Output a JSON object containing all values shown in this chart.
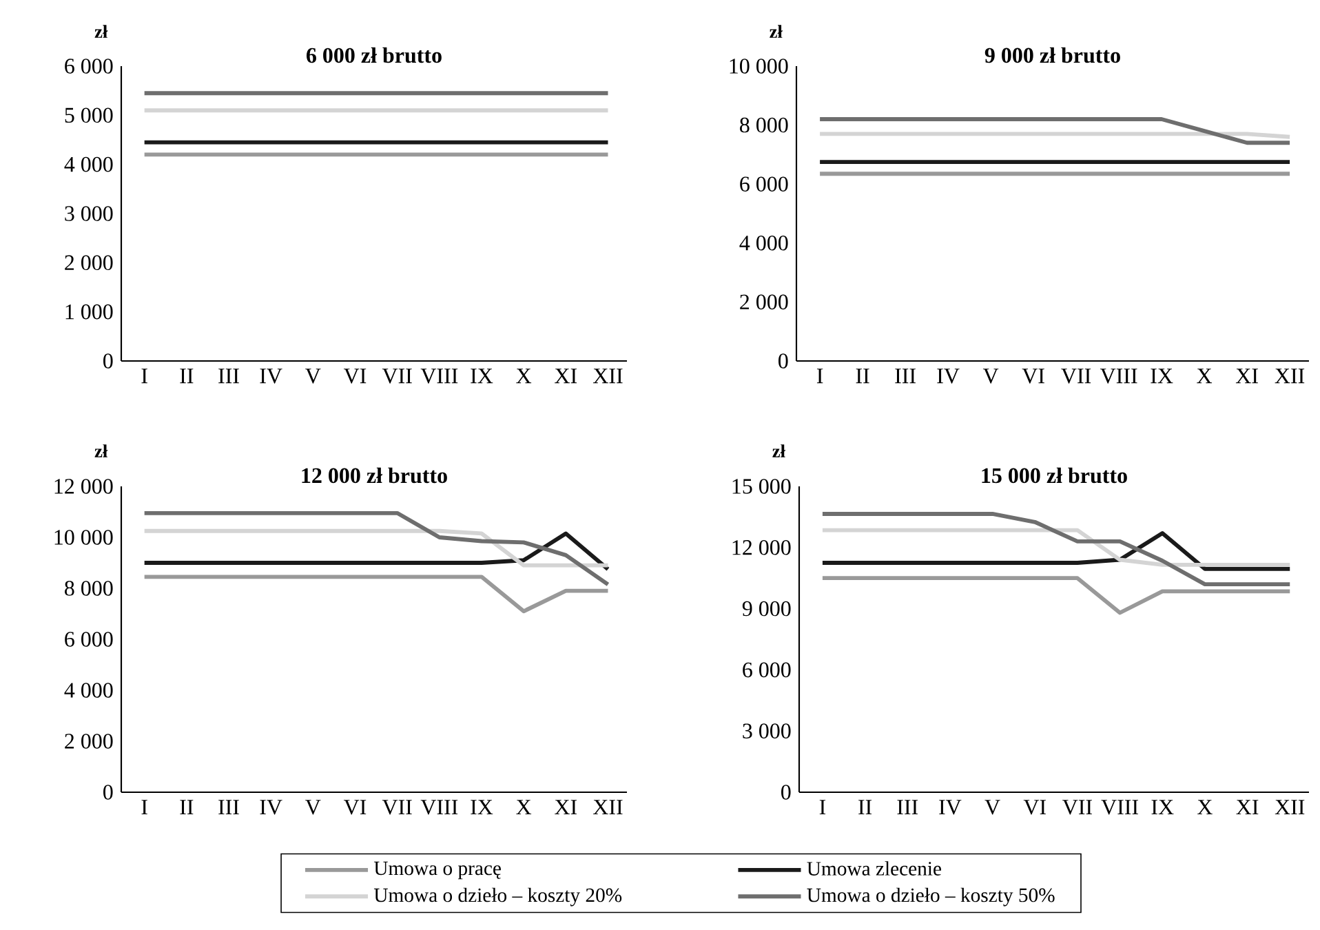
{
  "chart_data": [
    {
      "type": "line",
      "title": "6 000 zł brutto",
      "ylabel": "zł",
      "categories": [
        "I",
        "II",
        "III",
        "IV",
        "V",
        "VI",
        "VII",
        "VIII",
        "IX",
        "X",
        "XI",
        "XII"
      ],
      "ylim": [
        0,
        6000
      ],
      "yticks": [
        0,
        {
          "value": 1000,
          "label": "1 000"
        },
        {
          "value": 2000,
          "label": "2 000"
        },
        {
          "value": 3000,
          "label": "3 000"
        },
        {
          "value": 4000,
          "label": "4 000"
        },
        {
          "value": 5000,
          "label": "5 000"
        },
        {
          "value": 6000,
          "label": "6 000"
        }
      ],
      "series": [
        {
          "color": "#999999",
          "values": [
            4200,
            4200,
            4200,
            4200,
            4200,
            4200,
            4200,
            4200,
            4200,
            4200,
            4200,
            4200
          ]
        },
        {
          "color": "#1a1a1a",
          "values": [
            4450,
            4450,
            4450,
            4450,
            4450,
            4450,
            4450,
            4450,
            4450,
            4450,
            4450,
            4450
          ]
        },
        {
          "color": "#d4d4d4",
          "values": [
            5100,
            5100,
            5100,
            5100,
            5100,
            5100,
            5100,
            5100,
            5100,
            5100,
            5100,
            5100
          ]
        },
        {
          "color": "#6e6e6e",
          "values": [
            5450,
            5450,
            5450,
            5450,
            5450,
            5450,
            5450,
            5450,
            5450,
            5450,
            5450,
            5450
          ]
        }
      ]
    },
    {
      "type": "line",
      "title": "9 000 zł brutto",
      "ylabel": "zł",
      "categories": [
        "I",
        "II",
        "III",
        "IV",
        "V",
        "VI",
        "VII",
        "VIII",
        "IX",
        "X",
        "XI",
        "XII"
      ],
      "ylim": [
        0,
        10000
      ],
      "yticks": [
        0,
        {
          "value": 2000,
          "label": "2 000"
        },
        {
          "value": 4000,
          "label": "4 000"
        },
        {
          "value": 6000,
          "label": "6 000"
        },
        {
          "value": 8000,
          "label": "8 000"
        },
        {
          "value": 10000,
          "label": "10 000"
        }
      ],
      "series": [
        {
          "color": "#999999",
          "values": [
            6350,
            6350,
            6350,
            6350,
            6350,
            6350,
            6350,
            6350,
            6350,
            6350,
            6350,
            6350
          ]
        },
        {
          "color": "#1a1a1a",
          "values": [
            6750,
            6750,
            6750,
            6750,
            6750,
            6750,
            6750,
            6750,
            6750,
            6750,
            6750,
            6750
          ]
        },
        {
          "color": "#d4d4d4",
          "values": [
            7700,
            7700,
            7700,
            7700,
            7700,
            7700,
            7700,
            7700,
            7700,
            7700,
            7700,
            7600
          ]
        },
        {
          "color": "#6e6e6e",
          "values": [
            8200,
            8200,
            8200,
            8200,
            8200,
            8200,
            8200,
            8200,
            8200,
            7800,
            7400,
            7400
          ]
        }
      ]
    },
    {
      "type": "line",
      "title": "12 000 zł brutto",
      "ylabel": "zł",
      "legend": "bottom",
      "categories": [
        "I",
        "II",
        "III",
        "IV",
        "V",
        "VI",
        "VII",
        "VIII",
        "IX",
        "X",
        "XI",
        "XII"
      ],
      "ylim": [
        0,
        12000
      ],
      "yticks": [
        0,
        {
          "value": 2000,
          "label": "2 000"
        },
        {
          "value": 4000,
          "label": "4 000"
        },
        {
          "value": 6000,
          "label": "6 000"
        },
        {
          "value": 8000,
          "label": "8 000"
        },
        {
          "value": 10000,
          "label": "10 000"
        },
        {
          "value": 12000,
          "label": "12 000"
        }
      ],
      "series": [
        {
          "name": "Umowa o pracę",
          "color": "#999999",
          "values": [
            8450,
            8450,
            8450,
            8450,
            8450,
            8450,
            8450,
            8450,
            8450,
            7100,
            7900,
            7900
          ]
        },
        {
          "name": "Umowa zlecenie",
          "color": "#1a1a1a",
          "values": [
            9000,
            9000,
            9000,
            9000,
            9000,
            9000,
            9000,
            9000,
            9000,
            9100,
            10150,
            8750
          ]
        },
        {
          "name": "Umowa o dzieło – koszty 20%",
          "color": "#d4d4d4",
          "values": [
            10250,
            10250,
            10250,
            10250,
            10250,
            10250,
            10250,
            10250,
            10150,
            8900,
            8900,
            8900
          ]
        },
        {
          "name": "Umowa o dzieło – koszty 50%",
          "color": "#6e6e6e",
          "values": [
            10950,
            10950,
            10950,
            10950,
            10950,
            10950,
            10950,
            10000,
            9850,
            9800,
            9300,
            8150
          ]
        }
      ]
    },
    {
      "type": "line",
      "title": "15 000 zł brutto",
      "ylabel": "zł",
      "categories": [
        "I",
        "II",
        "III",
        "IV",
        "V",
        "VI",
        "VII",
        "VIII",
        "IX",
        "X",
        "XI",
        "XII"
      ],
      "ylim": [
        0,
        15000
      ],
      "yticks": [
        0,
        {
          "value": 3000,
          "label": "3 000"
        },
        {
          "value": 6000,
          "label": "6 000"
        },
        {
          "value": 9000,
          "label": "9 000"
        },
        {
          "value": 12000,
          "label": "12 000"
        },
        {
          "value": 15000,
          "label": "15 000"
        }
      ],
      "series": [
        {
          "color": "#999999",
          "values": [
            10500,
            10500,
            10500,
            10500,
            10500,
            10500,
            10500,
            8800,
            9850,
            9850,
            9850,
            9850
          ]
        },
        {
          "color": "#1a1a1a",
          "values": [
            11250,
            11250,
            11250,
            11250,
            11250,
            11250,
            11250,
            11400,
            12700,
            10950,
            10950,
            10950
          ]
        },
        {
          "color": "#d4d4d4",
          "values": [
            12850,
            12850,
            12850,
            12850,
            12850,
            12850,
            12850,
            11400,
            11150,
            11150,
            11150,
            11150
          ]
        },
        {
          "color": "#6e6e6e",
          "values": [
            13650,
            13650,
            13650,
            13650,
            13650,
            13250,
            12300,
            12300,
            11350,
            10200,
            10200,
            10200
          ]
        }
      ]
    }
  ]
}
